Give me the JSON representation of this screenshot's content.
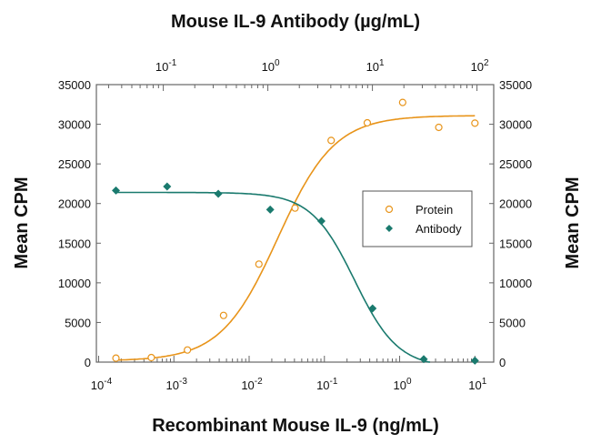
{
  "chart_data": {
    "type": "scatter",
    "title": "Mouse IL-9 Antibody (µg/mL)",
    "xlabel": "Recombinant Mouse IL-9 (ng/mL)",
    "ylabel": "Mean CPM",
    "ylabel_right": "Mean CPM",
    "x_scale": "log",
    "xlim_log10": [
      -4.03,
      1.25
    ],
    "top_xlim_log10": [
      -1.64,
      2.16
    ],
    "ylim": [
      0,
      35000
    ],
    "yticks": [
      0,
      5000,
      10000,
      15000,
      20000,
      25000,
      30000,
      35000
    ],
    "ytick_labels": [
      "0",
      "5000",
      "10000",
      "15000",
      "20000",
      "25000",
      "30000",
      "35000"
    ],
    "xtick_bases": [
      "10",
      "10",
      "10",
      "10",
      "10",
      "10"
    ],
    "xtick_exps": [
      "-4",
      "-3",
      "-2",
      "-1",
      "0",
      "1"
    ],
    "top_xtick_bases": [
      "10",
      "10",
      "10",
      "10"
    ],
    "top_xtick_exps": [
      "-1",
      "0",
      "1",
      "2"
    ],
    "legend_position": "center-right",
    "series": [
      {
        "name": "Protein",
        "color": "#E8941A",
        "marker": "open-circle",
        "x_log10": [
          -3.77,
          -3.3,
          -2.82,
          -2.34,
          -1.87,
          -1.39,
          -0.91,
          -0.43,
          0.04,
          0.52,
          1.0
        ],
        "y": [
          500,
          570,
          1530,
          5890,
          12360,
          19430,
          27960,
          30180,
          32750,
          29610,
          30140
        ],
        "fit": {
          "bottom": 150,
          "top": 31100,
          "log_ec50": -1.62,
          "hill": 1.15
        }
      },
      {
        "name": "Antibody",
        "color": "#1A7A6E",
        "marker": "filled-diamond",
        "x_log10": [
          -3.77,
          -3.09,
          -2.41,
          -1.72,
          -1.04,
          -0.36,
          0.32,
          1.0
        ],
        "y": [
          21650,
          22150,
          21230,
          19240,
          17790,
          6770,
          380,
          190
        ],
        "fit": {
          "bottom": -700,
          "top": 21400,
          "log_ec50": -0.6,
          "hill": -1.5
        }
      }
    ]
  }
}
